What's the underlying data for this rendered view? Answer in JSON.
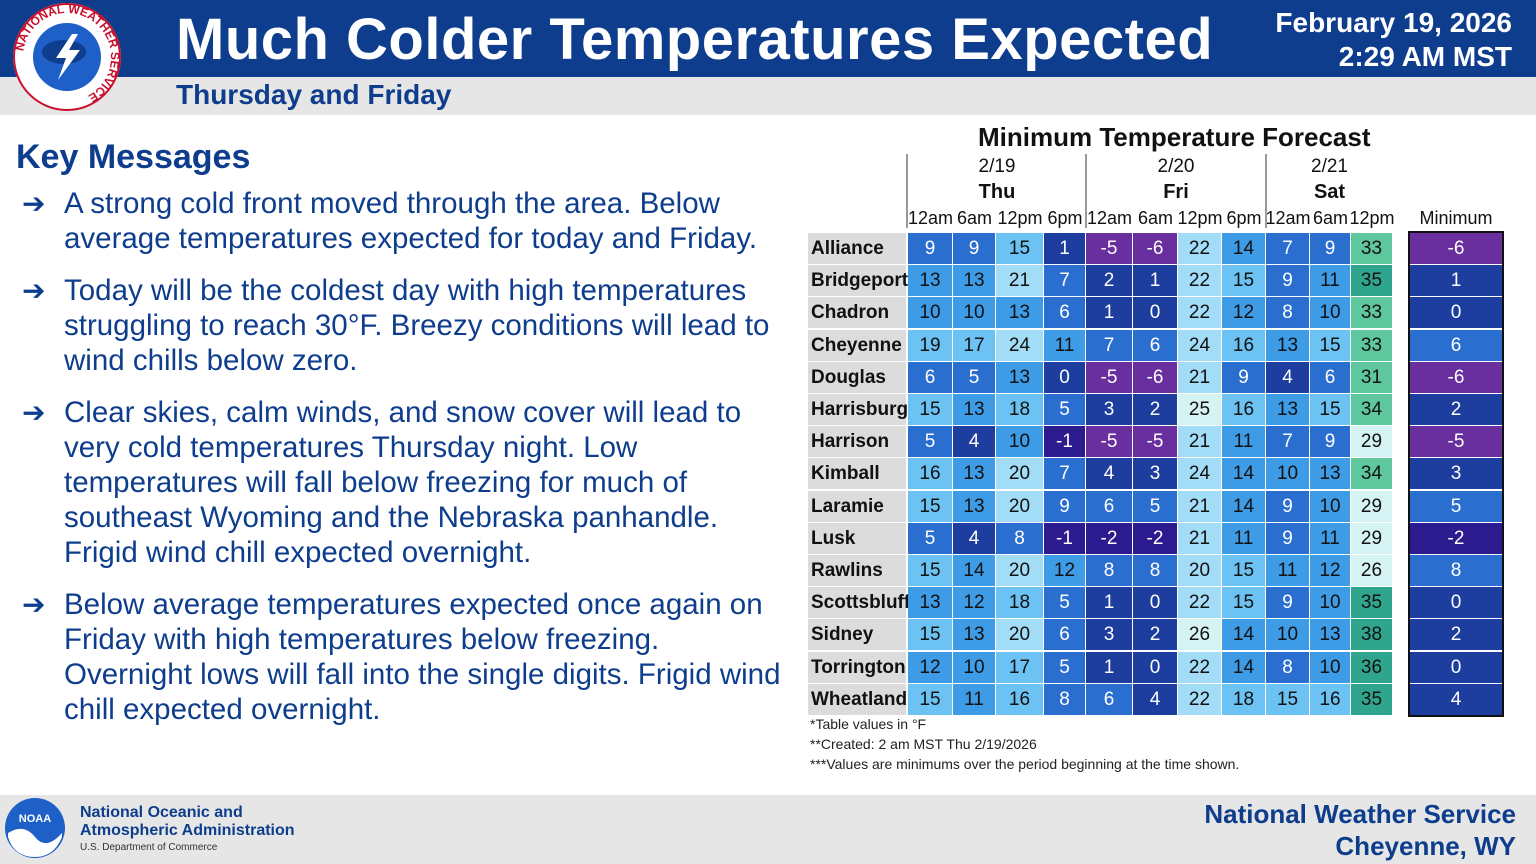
{
  "header": {
    "title": "Much Colder Temperatures Expected",
    "date": "February 19, 2026",
    "time": "2:29 AM MST",
    "subtitle": "Thursday and Friday",
    "logo_text": "NATIONAL WEATHER SERVICE"
  },
  "key_messages": {
    "title": "Key Messages",
    "arrow": "➔",
    "items": [
      "A strong cold front moved through the area. Below average temperatures expected for today and Friday.",
      "Today will be the coldest day with high temperatures struggling to reach 30°F. Breezy conditions will lead to wind chills below zero.",
      "Clear skies, calm winds, and snow cover will lead to very cold temperatures Thursday night. Low temperatures will fall below freezing for much of southeast Wyoming and the Nebraska panhandle. Frigid wind chill expected overnight.",
      "Below average temperatures expected once again on Friday with high temperatures below freezing. Overnight lows will fall into the single digits. Frigid wind chill expected overnight."
    ]
  },
  "table": {
    "title": "Minimum Temperature Forecast",
    "days": [
      {
        "date": "2/19",
        "name": "Thu"
      },
      {
        "date": "2/20",
        "name": "Fri"
      },
      {
        "date": "2/21",
        "name": "Sat"
      }
    ],
    "times": [
      "12am",
      "6am",
      "12pm",
      "6pm",
      "12am",
      "6am",
      "12pm",
      "6pm",
      "12am",
      "6am",
      "12pm"
    ],
    "min_header": "Minimum",
    "rows": [
      {
        "city": "Alliance",
        "values": [
          9,
          9,
          15,
          1,
          -5,
          -6,
          22,
          14,
          7,
          9,
          33
        ],
        "min": -6
      },
      {
        "city": "Bridgeport",
        "values": [
          13,
          13,
          21,
          7,
          2,
          1,
          22,
          15,
          9,
          11,
          35
        ],
        "min": 1
      },
      {
        "city": "Chadron",
        "values": [
          10,
          10,
          13,
          6,
          1,
          0,
          22,
          12,
          8,
          10,
          33
        ],
        "min": 0
      },
      {
        "city": "Cheyenne",
        "values": [
          19,
          17,
          24,
          11,
          7,
          6,
          24,
          16,
          13,
          15,
          33
        ],
        "min": 6
      },
      {
        "city": "Douglas",
        "values": [
          6,
          5,
          13,
          0,
          -5,
          -6,
          21,
          9,
          4,
          6,
          31
        ],
        "min": -6
      },
      {
        "city": "Harrisburg",
        "values": [
          15,
          13,
          18,
          5,
          3,
          2,
          25,
          16,
          13,
          15,
          34
        ],
        "min": 2
      },
      {
        "city": "Harrison",
        "values": [
          5,
          4,
          10,
          -1,
          -5,
          -5,
          21,
          11,
          7,
          9,
          29
        ],
        "min": -5
      },
      {
        "city": "Kimball",
        "values": [
          16,
          13,
          20,
          7,
          4,
          3,
          24,
          14,
          10,
          13,
          34
        ],
        "min": 3
      },
      {
        "city": "Laramie",
        "values": [
          15,
          13,
          20,
          9,
          6,
          5,
          21,
          14,
          9,
          10,
          29
        ],
        "min": 5
      },
      {
        "city": "Lusk",
        "values": [
          5,
          4,
          8,
          -1,
          -2,
          -2,
          21,
          11,
          9,
          11,
          29
        ],
        "min": -2
      },
      {
        "city": "Rawlins",
        "values": [
          15,
          14,
          20,
          12,
          8,
          8,
          20,
          15,
          11,
          12,
          26
        ],
        "min": 8
      },
      {
        "city": "Scottsbluff",
        "values": [
          13,
          12,
          18,
          5,
          1,
          0,
          22,
          15,
          9,
          10,
          35
        ],
        "min": 0
      },
      {
        "city": "Sidney",
        "values": [
          15,
          13,
          20,
          6,
          3,
          2,
          26,
          14,
          10,
          13,
          38
        ],
        "min": 2
      },
      {
        "city": "Torrington",
        "values": [
          12,
          10,
          17,
          5,
          1,
          0,
          22,
          14,
          8,
          10,
          36
        ],
        "min": 0
      },
      {
        "city": "Wheatland",
        "values": [
          15,
          11,
          16,
          8,
          6,
          4,
          22,
          18,
          15,
          16,
          35
        ],
        "min": 4
      }
    ],
    "notes": [
      "*Table values in °F",
      "**Created: 2 am MST Thu 2/19/2026",
      "***Values are minimums over the period beginning at the time shown."
    ]
  },
  "footer": {
    "noaa_line1": "National Oceanic and",
    "noaa_line2": "Atmospheric Administration",
    "noaa_sub": "U.S. Department of Commerce",
    "noaa_logo_text": "NOAA",
    "nws_line1": "National Weather Service",
    "nws_line2": "Cheyenne, WY"
  },
  "colors": {
    "brand_blue": "#0d3d8c",
    "temp_scale": {
      "le_-5": "#6a2f9e",
      "-4_-1": "#2b1b8e",
      "0_4": "#1d3e9e",
      "5_9": "#2a6fd0",
      "10_14": "#3e9be6",
      "15_19": "#6cc2f2",
      "20_24": "#a3dcf6",
      "25_29": "#d5f3f3",
      "30_34": "#5ec79e",
      "35_39": "#2ea58c"
    }
  }
}
